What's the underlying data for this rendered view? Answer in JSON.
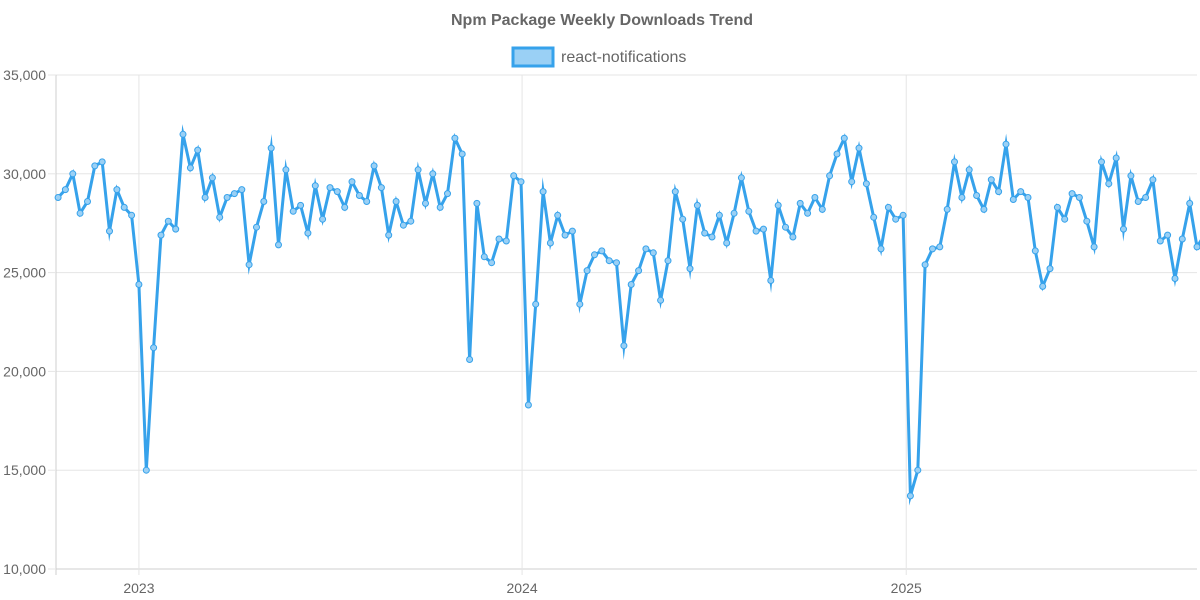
{
  "chart_data": {
    "type": "line",
    "title": "Npm Package Weekly Downloads Trend",
    "legend": {
      "position": "top-center"
    },
    "series": [
      {
        "name": "react-notifications",
        "line_color": "#36A2EB",
        "fill_color": "#9AD0F5",
        "values": [
          28800,
          29200,
          30000,
          28000,
          28600,
          30400,
          30600,
          27100,
          29200,
          28300,
          27900,
          24400,
          15000,
          21200,
          26900,
          27600,
          27200,
          32000,
          30300,
          31200,
          28800,
          29800,
          27800,
          28800,
          29000,
          29200,
          25400,
          27300,
          28600,
          31300,
          26400,
          30200,
          28100,
          28400,
          27000,
          29400,
          27700,
          29300,
          29100,
          28300,
          29600,
          28900,
          28600,
          30400,
          29300,
          26900,
          28600,
          27400,
          27600,
          30200,
          28500,
          30000,
          28300,
          29000,
          31800,
          31000,
          20600,
          28500,
          25800,
          25500,
          26700,
          26600,
          29900,
          29600,
          18300,
          23400,
          29100,
          26500,
          27900,
          26900,
          27100,
          23400,
          25100,
          25900,
          26100,
          25600,
          25500,
          21300,
          24400,
          25100,
          26200,
          26000,
          23600,
          25600,
          29100,
          27700,
          25200,
          28400,
          27000,
          26800,
          27900,
          26500,
          28000,
          29800,
          28100,
          27100,
          27200,
          24600,
          28400,
          27300,
          26800,
          28500,
          28000,
          28800,
          28200,
          29900,
          31000,
          31800,
          29600,
          31300,
          29500,
          27800,
          26200,
          28300,
          27700,
          27900,
          13700,
          15000,
          25400,
          26200,
          26300,
          28200,
          30600,
          28800,
          30200,
          28900,
          28200,
          29700,
          29100,
          31500,
          28700,
          29100,
          28800,
          26100,
          24300,
          25200,
          28300,
          27700,
          29000,
          28800,
          27600,
          26300,
          30600,
          29500,
          30800,
          27200,
          29900,
          28600,
          28800,
          29700,
          26600,
          26900,
          24700,
          26700,
          28500,
          26300,
          26900
        ]
      }
    ],
    "x_axis": {
      "type": "time",
      "start": "2022-10-16",
      "step_days": 7,
      "tick_labels": [
        "2023",
        "2024",
        "2025"
      ],
      "tick_dates": [
        "2023-01-01",
        "2024-01-01",
        "2025-01-01"
      ],
      "range": [
        "2022-10-14",
        "2025-10-05"
      ]
    },
    "y_axis": {
      "ylim": [
        10000,
        35000
      ],
      "ticks": [
        10000,
        15000,
        20000,
        25000,
        30000,
        35000
      ],
      "tick_labels": [
        "10,000",
        "15,000",
        "20,000",
        "25,000",
        "30,000",
        "35,000"
      ]
    },
    "grid": true
  }
}
